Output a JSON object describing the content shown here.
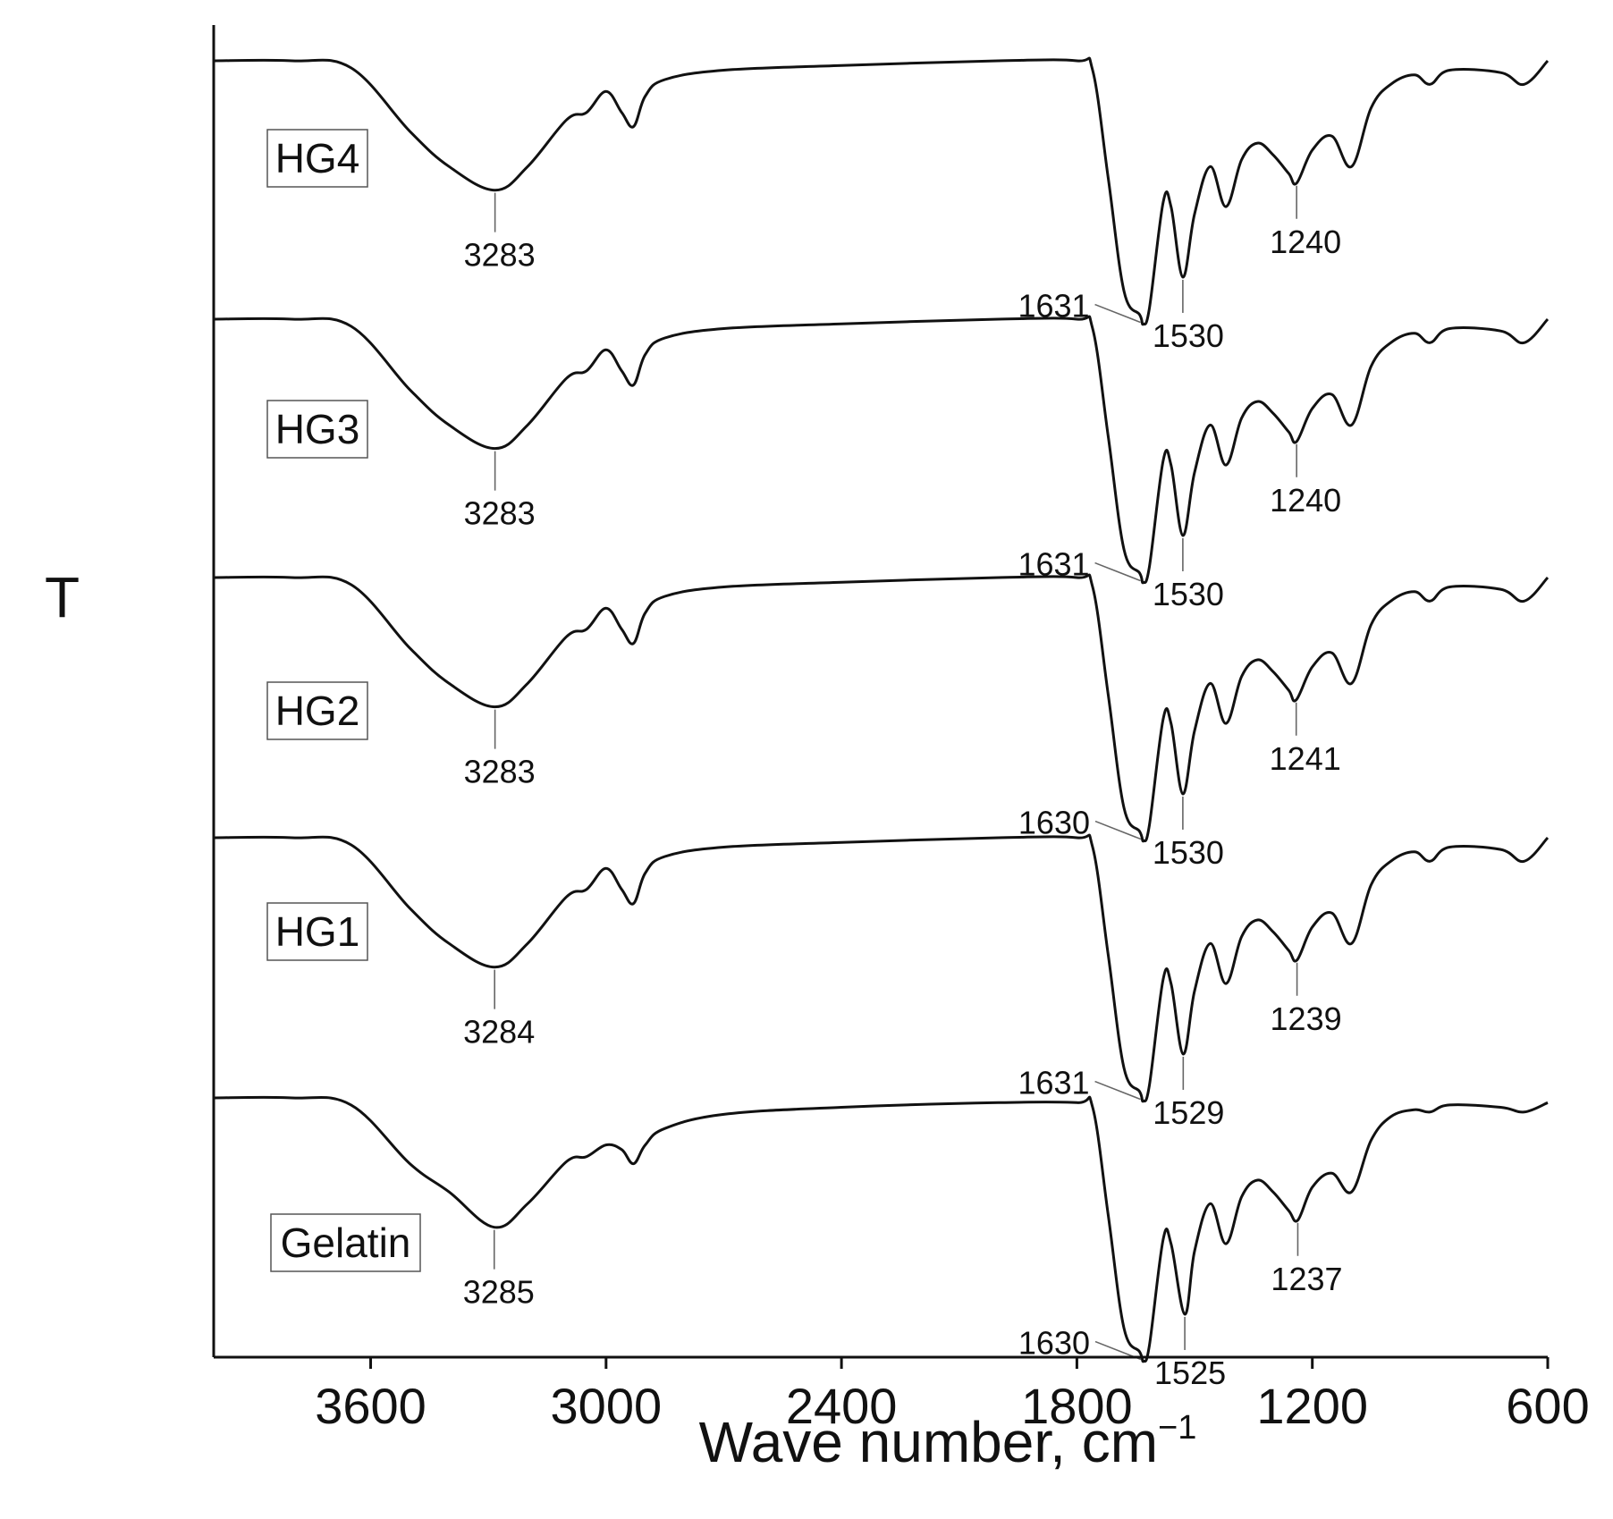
{
  "chart_data": {
    "type": "line",
    "title": "",
    "xlabel": "Wave number, cm",
    "xlabel_superscript": "−1",
    "ylabel": "T",
    "xlim": [
      4000,
      600
    ],
    "x_reversed": true,
    "x_ticks": [
      3600,
      3000,
      2400,
      1800,
      1200,
      600
    ],
    "grid": false,
    "legend": "none",
    "note": "Stacked FTIR transmittance spectra; y values are relative transmittance (1 = baseline), curves vertically offset.",
    "series": [
      {
        "name": "HG4",
        "points": [
          [
            4000,
            1.0
          ],
          [
            3800,
            1.0
          ],
          [
            3650,
            0.97
          ],
          [
            3500,
            0.7
          ],
          [
            3400,
            0.55
          ],
          [
            3283,
            0.45
          ],
          [
            3200,
            0.55
          ],
          [
            3100,
            0.75
          ],
          [
            3050,
            0.78
          ],
          [
            3000,
            0.87
          ],
          [
            2960,
            0.78
          ],
          [
            2930,
            0.72
          ],
          [
            2900,
            0.85
          ],
          [
            2850,
            0.92
          ],
          [
            2700,
            0.96
          ],
          [
            2400,
            0.98
          ],
          [
            2000,
            1.0
          ],
          [
            1800,
            1.0
          ],
          [
            1760,
            0.96
          ],
          [
            1720,
            0.5
          ],
          [
            1680,
            0.02
          ],
          [
            1640,
            -0.08
          ],
          [
            1631,
            -0.12
          ],
          [
            1615,
            -0.05
          ],
          [
            1580,
            0.4
          ],
          [
            1560,
            0.38
          ],
          [
            1530,
            0.08
          ],
          [
            1500,
            0.35
          ],
          [
            1460,
            0.55
          ],
          [
            1420,
            0.38
          ],
          [
            1380,
            0.58
          ],
          [
            1340,
            0.65
          ],
          [
            1300,
            0.6
          ],
          [
            1260,
            0.52
          ],
          [
            1240,
            0.48
          ],
          [
            1200,
            0.62
          ],
          [
            1150,
            0.68
          ],
          [
            1100,
            0.55
          ],
          [
            1050,
            0.8
          ],
          [
            1000,
            0.9
          ],
          [
            940,
            0.94
          ],
          [
            900,
            0.9
          ],
          [
            850,
            0.96
          ],
          [
            720,
            0.95
          ],
          [
            660,
            0.9
          ],
          [
            600,
            1.0
          ]
        ]
      },
      {
        "name": "HG3",
        "points": [
          [
            4000,
            1.0
          ],
          [
            3800,
            1.0
          ],
          [
            3650,
            0.97
          ],
          [
            3500,
            0.7
          ],
          [
            3400,
            0.55
          ],
          [
            3283,
            0.45
          ],
          [
            3200,
            0.55
          ],
          [
            3100,
            0.75
          ],
          [
            3050,
            0.78
          ],
          [
            3000,
            0.87
          ],
          [
            2960,
            0.78
          ],
          [
            2930,
            0.72
          ],
          [
            2900,
            0.85
          ],
          [
            2850,
            0.92
          ],
          [
            2700,
            0.96
          ],
          [
            2400,
            0.98
          ],
          [
            2000,
            1.0
          ],
          [
            1800,
            1.0
          ],
          [
            1760,
            0.96
          ],
          [
            1720,
            0.5
          ],
          [
            1680,
            0.02
          ],
          [
            1640,
            -0.08
          ],
          [
            1631,
            -0.12
          ],
          [
            1615,
            -0.05
          ],
          [
            1580,
            0.4
          ],
          [
            1560,
            0.38
          ],
          [
            1530,
            0.08
          ],
          [
            1500,
            0.35
          ],
          [
            1460,
            0.55
          ],
          [
            1420,
            0.38
          ],
          [
            1380,
            0.58
          ],
          [
            1340,
            0.65
          ],
          [
            1300,
            0.6
          ],
          [
            1260,
            0.52
          ],
          [
            1240,
            0.48
          ],
          [
            1200,
            0.62
          ],
          [
            1150,
            0.68
          ],
          [
            1100,
            0.55
          ],
          [
            1050,
            0.8
          ],
          [
            1000,
            0.9
          ],
          [
            940,
            0.94
          ],
          [
            900,
            0.9
          ],
          [
            850,
            0.96
          ],
          [
            720,
            0.95
          ],
          [
            660,
            0.9
          ],
          [
            600,
            1.0
          ]
        ]
      },
      {
        "name": "HG2",
        "points": [
          [
            4000,
            1.0
          ],
          [
            3800,
            1.0
          ],
          [
            3650,
            0.97
          ],
          [
            3500,
            0.7
          ],
          [
            3400,
            0.55
          ],
          [
            3283,
            0.45
          ],
          [
            3200,
            0.55
          ],
          [
            3100,
            0.75
          ],
          [
            3050,
            0.78
          ],
          [
            3000,
            0.87
          ],
          [
            2960,
            0.78
          ],
          [
            2930,
            0.72
          ],
          [
            2900,
            0.85
          ],
          [
            2850,
            0.92
          ],
          [
            2700,
            0.96
          ],
          [
            2400,
            0.98
          ],
          [
            2000,
            1.0
          ],
          [
            1800,
            1.0
          ],
          [
            1760,
            0.96
          ],
          [
            1720,
            0.5
          ],
          [
            1680,
            0.02
          ],
          [
            1640,
            -0.08
          ],
          [
            1630,
            -0.12
          ],
          [
            1615,
            -0.05
          ],
          [
            1580,
            0.4
          ],
          [
            1560,
            0.38
          ],
          [
            1530,
            0.08
          ],
          [
            1500,
            0.35
          ],
          [
            1460,
            0.55
          ],
          [
            1420,
            0.38
          ],
          [
            1380,
            0.58
          ],
          [
            1340,
            0.65
          ],
          [
            1300,
            0.6
          ],
          [
            1260,
            0.52
          ],
          [
            1241,
            0.48
          ],
          [
            1200,
            0.62
          ],
          [
            1150,
            0.68
          ],
          [
            1100,
            0.55
          ],
          [
            1050,
            0.8
          ],
          [
            1000,
            0.9
          ],
          [
            940,
            0.94
          ],
          [
            900,
            0.9
          ],
          [
            850,
            0.96
          ],
          [
            720,
            0.95
          ],
          [
            660,
            0.9
          ],
          [
            600,
            1.0
          ]
        ]
      },
      {
        "name": "HG1",
        "points": [
          [
            4000,
            1.0
          ],
          [
            3800,
            1.0
          ],
          [
            3650,
            0.97
          ],
          [
            3500,
            0.7
          ],
          [
            3400,
            0.55
          ],
          [
            3284,
            0.45
          ],
          [
            3200,
            0.55
          ],
          [
            3100,
            0.75
          ],
          [
            3050,
            0.78
          ],
          [
            3000,
            0.87
          ],
          [
            2960,
            0.78
          ],
          [
            2930,
            0.72
          ],
          [
            2900,
            0.85
          ],
          [
            2850,
            0.92
          ],
          [
            2700,
            0.96
          ],
          [
            2400,
            0.98
          ],
          [
            2000,
            1.0
          ],
          [
            1800,
            1.0
          ],
          [
            1760,
            0.96
          ],
          [
            1720,
            0.5
          ],
          [
            1680,
            0.02
          ],
          [
            1640,
            -0.08
          ],
          [
            1631,
            -0.12
          ],
          [
            1615,
            -0.05
          ],
          [
            1580,
            0.4
          ],
          [
            1560,
            0.38
          ],
          [
            1529,
            0.08
          ],
          [
            1500,
            0.35
          ],
          [
            1460,
            0.55
          ],
          [
            1420,
            0.38
          ],
          [
            1380,
            0.58
          ],
          [
            1340,
            0.65
          ],
          [
            1300,
            0.6
          ],
          [
            1260,
            0.52
          ],
          [
            1239,
            0.48
          ],
          [
            1200,
            0.62
          ],
          [
            1150,
            0.68
          ],
          [
            1100,
            0.55
          ],
          [
            1050,
            0.8
          ],
          [
            1000,
            0.9
          ],
          [
            940,
            0.94
          ],
          [
            900,
            0.9
          ],
          [
            850,
            0.96
          ],
          [
            720,
            0.95
          ],
          [
            660,
            0.9
          ],
          [
            600,
            1.0
          ]
        ]
      },
      {
        "name": "Gelatin",
        "points": [
          [
            4000,
            1.0
          ],
          [
            3800,
            1.0
          ],
          [
            3650,
            0.97
          ],
          [
            3500,
            0.72
          ],
          [
            3400,
            0.6
          ],
          [
            3285,
            0.45
          ],
          [
            3200,
            0.55
          ],
          [
            3100,
            0.73
          ],
          [
            3050,
            0.75
          ],
          [
            3000,
            0.8
          ],
          [
            2960,
            0.78
          ],
          [
            2930,
            0.72
          ],
          [
            2900,
            0.8
          ],
          [
            2850,
            0.87
          ],
          [
            2700,
            0.93
          ],
          [
            2400,
            0.96
          ],
          [
            2000,
            0.98
          ],
          [
            1800,
            0.98
          ],
          [
            1760,
            0.96
          ],
          [
            1720,
            0.5
          ],
          [
            1680,
            0.02
          ],
          [
            1640,
            -0.08
          ],
          [
            1630,
            -0.12
          ],
          [
            1615,
            -0.05
          ],
          [
            1580,
            0.4
          ],
          [
            1560,
            0.38
          ],
          [
            1525,
            0.08
          ],
          [
            1500,
            0.35
          ],
          [
            1460,
            0.55
          ],
          [
            1420,
            0.38
          ],
          [
            1380,
            0.58
          ],
          [
            1340,
            0.65
          ],
          [
            1300,
            0.6
          ],
          [
            1260,
            0.52
          ],
          [
            1237,
            0.48
          ],
          [
            1200,
            0.62
          ],
          [
            1150,
            0.68
          ],
          [
            1100,
            0.6
          ],
          [
            1050,
            0.82
          ],
          [
            1000,
            0.92
          ],
          [
            940,
            0.95
          ],
          [
            900,
            0.94
          ],
          [
            850,
            0.97
          ],
          [
            720,
            0.96
          ],
          [
            660,
            0.94
          ],
          [
            600,
            0.98
          ]
        ]
      }
    ],
    "annotations": [
      {
        "series": "HG4",
        "peaks": [
          "3283",
          "1631",
          "1530",
          "1240"
        ]
      },
      {
        "series": "HG3",
        "peaks": [
          "3283",
          "1631",
          "1530",
          "1240"
        ]
      },
      {
        "series": "HG2",
        "peaks": [
          "3283",
          "1630",
          "1530",
          "1241"
        ]
      },
      {
        "series": "HG1",
        "peaks": [
          "3284",
          "1631",
          "1529",
          "1239"
        ]
      },
      {
        "series": "Gelatin",
        "peaks": [
          "3285",
          "1630",
          "1525",
          "1237"
        ]
      }
    ]
  }
}
